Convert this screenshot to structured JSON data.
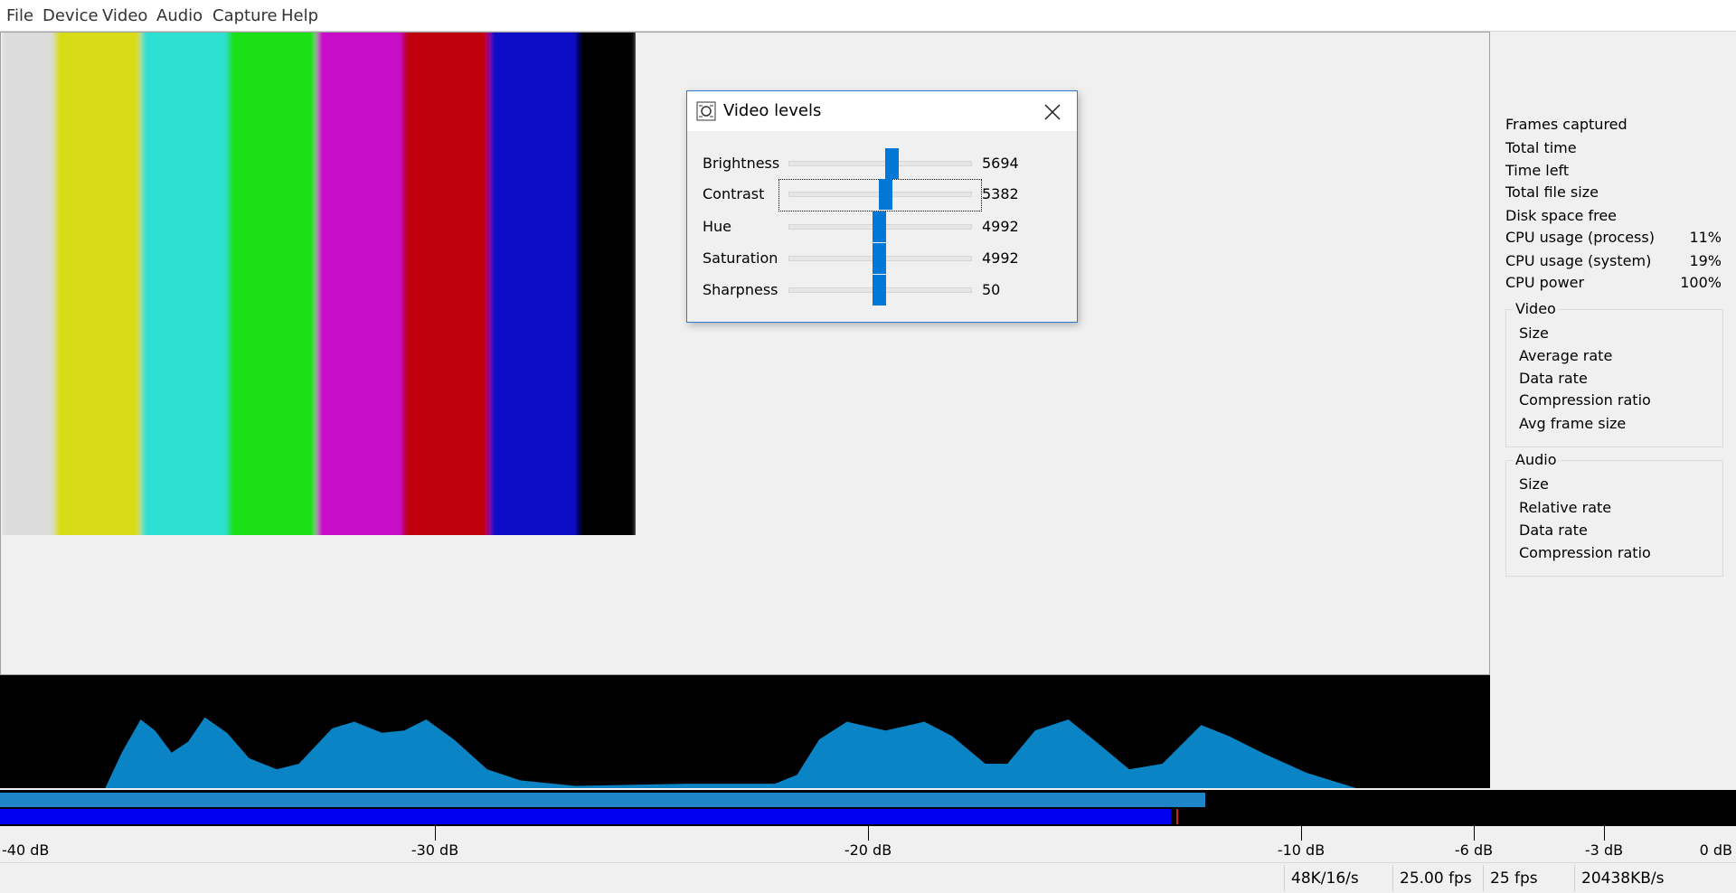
{
  "menu": {
    "items": [
      "File",
      "Device",
      "Video",
      "Audio",
      "Capture",
      "Help"
    ]
  },
  "video_levels": {
    "title": "Video levels",
    "sliders": [
      {
        "label": "Brightness",
        "value": 5694
      },
      {
        "label": "Contrast",
        "value": 5382
      },
      {
        "label": "Hue",
        "value": 4992
      },
      {
        "label": "Saturation",
        "value": 4992
      },
      {
        "label": "Sharpness",
        "value": 50
      }
    ]
  },
  "stats": {
    "rows": [
      {
        "label": "Frames captured"
      },
      {
        "label": "Total time"
      },
      {
        "label": "Time left"
      },
      {
        "label": "Total file size"
      },
      {
        "label": "Disk space free"
      },
      {
        "label": "CPU usage (process)",
        "value": "11%"
      },
      {
        "label": "CPU usage (system)",
        "value": "19%"
      },
      {
        "label": "CPU power",
        "value": "100%"
      }
    ],
    "video": {
      "title": "Video",
      "items": [
        "Size",
        "Average rate",
        "Data rate",
        "Compression ratio",
        "Avg frame size"
      ]
    },
    "audio": {
      "title": "Audio",
      "items": [
        "Size",
        "Relative rate",
        "Data rate",
        "Compression ratio"
      ]
    }
  },
  "meter": {
    "scale": [
      "-40 dB",
      "-30 dB",
      "-20 dB",
      "-10 dB",
      "-6 dB",
      "-3 dB",
      "0 dB"
    ]
  },
  "status_bar": {
    "items": [
      "48K/16/s",
      "25.00 fps",
      "25 fps",
      "20438KB/s"
    ]
  }
}
